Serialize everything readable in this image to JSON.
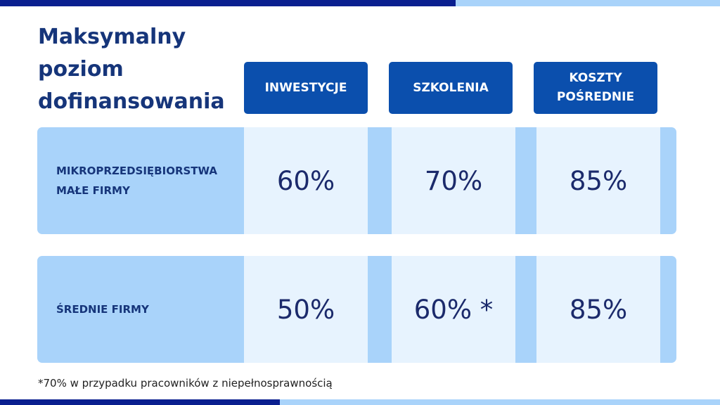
{
  "header": {
    "title": "Maksymalny poziom dofinansowania"
  },
  "table": {
    "columns": [
      "INWESTYCJE",
      "SZKOLENIA",
      [
        "KOSZTY",
        "POŚREDNIE"
      ]
    ],
    "rows": [
      {
        "label": [
          "MIKROPRZEDSIĘBIORSTWA",
          "MAŁE FIRMY"
        ],
        "cells": [
          "60%",
          "70%",
          "85%"
        ]
      },
      {
        "label": [
          "ŚREDNIE FIRMY"
        ],
        "cells": [
          "50%",
          "60% *",
          "85%"
        ]
      }
    ]
  },
  "footnote": "*70% w przypadku pracowników z niepełnosprawnością"
}
